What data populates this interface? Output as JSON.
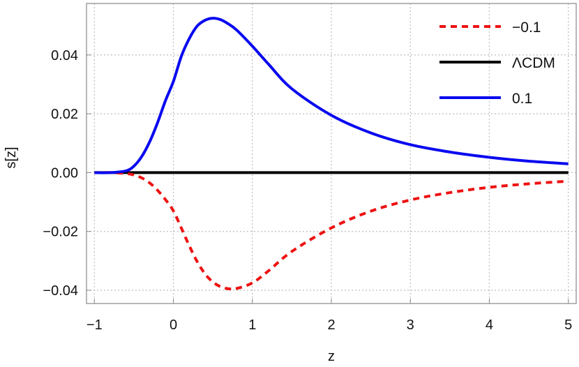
{
  "chart_data": {
    "type": "line",
    "title": "",
    "xlabel": "z",
    "ylabel": "s[z]",
    "xlim": [
      -1.1,
      5.1
    ],
    "ylim": [
      -0.0445,
      0.0575
    ],
    "x_ticks": [
      -1,
      0,
      1,
      2,
      3,
      4,
      5
    ],
    "x_tick_labels": [
      "−1",
      "0",
      "1",
      "2",
      "3",
      "4",
      "5"
    ],
    "y_ticks": [
      -0.04,
      -0.02,
      0,
      0.02,
      0.04
    ],
    "y_tick_labels": [
      "−0.04",
      "−0.02",
      "0.00",
      "0.02",
      "0.04"
    ],
    "grid": true,
    "legend_position": "top-right",
    "x": [
      -1.0,
      -0.8,
      -0.6,
      -0.5,
      -0.4,
      -0.3,
      -0.2,
      -0.1,
      0.0,
      0.1,
      0.2,
      0.3,
      0.4,
      0.5,
      0.6,
      0.7,
      0.8,
      1.0,
      1.2,
      1.5,
      2.0,
      2.5,
      3.0,
      3.5,
      4.0,
      4.5,
      5.0
    ],
    "series": [
      {
        "name": "−0.1",
        "color": "#ee1111",
        "style": "dashed",
        "values": [
          0.0,
          0.0,
          -0.0003,
          -0.0008,
          -0.0018,
          -0.0035,
          -0.006,
          -0.0092,
          -0.013,
          -0.0188,
          -0.0248,
          -0.0302,
          -0.0344,
          -0.0372,
          -0.0388,
          -0.0395,
          -0.0394,
          -0.0375,
          -0.0335,
          -0.0268,
          -0.0188,
          -0.0131,
          -0.0093,
          -0.0068,
          -0.005,
          -0.0038,
          -0.0029
        ]
      },
      {
        "name": "ΛCDM",
        "color": "#000000",
        "style": "solid",
        "values": [
          0,
          0,
          0,
          0,
          0,
          0,
          0,
          0,
          0,
          0,
          0,
          0,
          0,
          0,
          0,
          0,
          0,
          0,
          0,
          0,
          0,
          0,
          0,
          0,
          0,
          0,
          0
        ]
      },
      {
        "name": "0.1",
        "color": "#0a0af0",
        "style": "solid",
        "values": [
          0.0,
          0.0,
          0.0006,
          0.0022,
          0.0055,
          0.0105,
          0.017,
          0.0245,
          0.031,
          0.0395,
          0.0455,
          0.0498,
          0.0518,
          0.0525,
          0.052,
          0.0505,
          0.0485,
          0.043,
          0.037,
          0.0285,
          0.0195,
          0.0135,
          0.0095,
          0.007,
          0.0052,
          0.0039,
          0.003
        ]
      }
    ]
  }
}
